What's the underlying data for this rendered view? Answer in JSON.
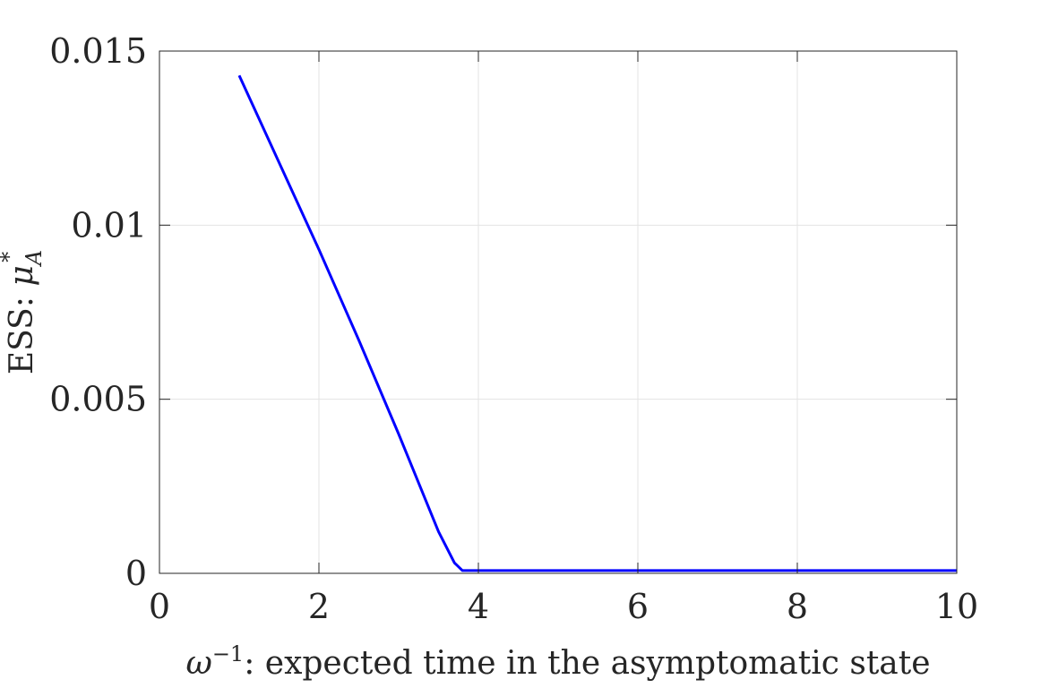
{
  "chart_data": {
    "type": "line",
    "title": "",
    "xlabel": {
      "symbol": "ω",
      "superscript": "−1",
      "text": ": expected time in the asymptomatic state"
    },
    "ylabel": {
      "prefix": "ESS: ",
      "symbol": "μ",
      "superscript": "*",
      "subscript": "A"
    },
    "xlim": [
      0,
      10
    ],
    "ylim": [
      0,
      0.015
    ],
    "xticks": [
      0,
      2,
      4,
      6,
      8,
      10
    ],
    "xtick_labels": [
      "0",
      "2",
      "4",
      "6",
      "8",
      "10"
    ],
    "yticks": [
      0,
      0.005,
      0.01,
      0.015
    ],
    "ytick_labels": [
      "0",
      "0.005",
      "0.01",
      "0.015"
    ],
    "grid": true,
    "box": true,
    "series": [
      {
        "color": "#0000ff",
        "x": [
          1.0,
          1.5,
          2.0,
          2.5,
          3.0,
          3.5,
          3.7,
          3.8,
          4.0,
          5.0,
          6.0,
          7.0,
          8.0,
          9.0,
          10.0
        ],
        "y": [
          0.0143,
          0.0118,
          0.0093,
          0.0067,
          0.004,
          0.0012,
          0.0003,
          8e-05,
          8e-05,
          8e-05,
          8e-05,
          8e-05,
          8e-05,
          8e-05,
          8e-05
        ]
      }
    ]
  }
}
